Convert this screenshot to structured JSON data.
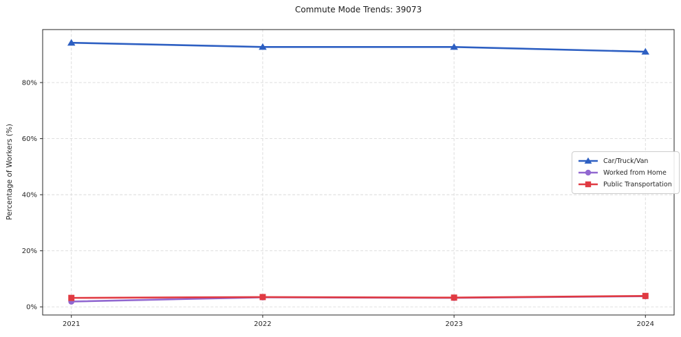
{
  "chart_data": {
    "type": "line",
    "title": "Commute Mode Trends: 39073",
    "xlabel": "",
    "ylabel": "Percentage of Workers (%)",
    "x": [
      2021,
      2022,
      2023,
      2024
    ],
    "xtick_labels": [
      "2021",
      "2022",
      "2023",
      "2024"
    ],
    "yticks": [
      0,
      20,
      40,
      60,
      80
    ],
    "ytick_labels": [
      "0%",
      "20%",
      "40%",
      "60%",
      "80%"
    ],
    "xlim": [
      2020.85,
      2024.15
    ],
    "ylim": [
      -2.9,
      98.9
    ],
    "grid": true,
    "legend_position": "center-right",
    "series": [
      {
        "name": "Car/Truck/Van",
        "color": "#2d5fc2",
        "marker": "triangle",
        "values": [
          94.2,
          92.7,
          92.7,
          91.0
        ]
      },
      {
        "name": "Worked from Home",
        "color": "#9168d0",
        "marker": "circle",
        "values": [
          1.9,
          3.4,
          3.2,
          3.8
        ]
      },
      {
        "name": "Public Transportation",
        "color": "#e03a42",
        "marker": "square",
        "values": [
          3.2,
          3.5,
          3.3,
          3.9
        ]
      }
    ]
  }
}
